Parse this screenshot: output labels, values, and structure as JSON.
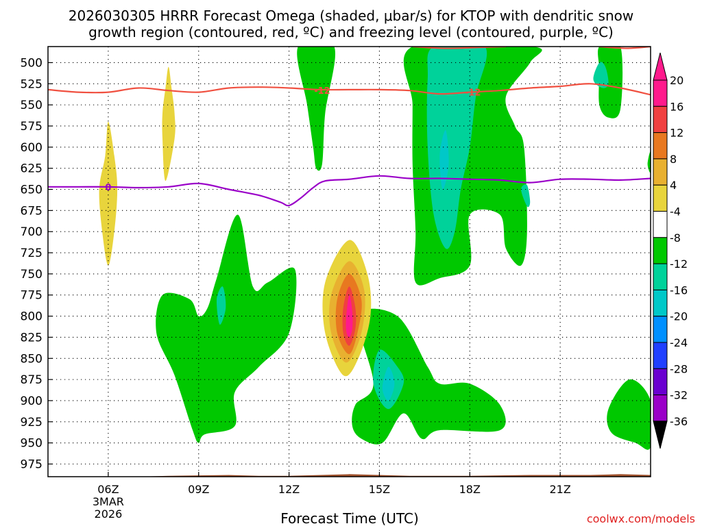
{
  "chart_data": {
    "type": "heatmap",
    "title_line1": "2026030305 HRRR Forecast Omega (shaded, μbar/s) for KTOP with dendritic snow",
    "title_line2": "growth region (contoured, red, ºC) and freezing level (contoured, purple, ºC)",
    "xlabel": "Forecast Time (UTC)",
    "credit": "coolwx.com/models",
    "x_range_hours": [
      4,
      24
    ],
    "y_range_mb": [
      481,
      990
    ],
    "x_ticks": [
      {
        "hour": 6,
        "label": "06Z",
        "sub1": "3MAR",
        "sub2": "2026"
      },
      {
        "hour": 9,
        "label": "09Z"
      },
      {
        "hour": 12,
        "label": "12Z"
      },
      {
        "hour": 15,
        "label": "15Z"
      },
      {
        "hour": 18,
        "label": "18Z"
      },
      {
        "hour": 21,
        "label": "21Z"
      }
    ],
    "y_ticks": [
      500,
      525,
      550,
      575,
      600,
      625,
      650,
      675,
      700,
      725,
      750,
      775,
      800,
      825,
      850,
      875,
      900,
      925,
      950,
      975
    ],
    "colorbar": {
      "colors": [
        "#a0a0a0",
        "#9a00c8",
        "#6a00d0",
        "#2040ff",
        "#0090ff",
        "#00c8c8",
        "#00d29a",
        "#00c800",
        "#ffffff",
        "#e8d43c",
        "#e8b030",
        "#e87820",
        "#f04040",
        "#ff1a8c"
      ],
      "labels": [
        "-36",
        "-32",
        "-28",
        "-24",
        "-20",
        "-16",
        "-12",
        "-8",
        "-4",
        "4",
        "8",
        "12",
        "16",
        "20"
      ],
      "under_color": "#000000",
      "over_color": "#ff1a8c"
    },
    "shaded_regions": [
      {
        "level": "-8",
        "color": "#00c800",
        "points": [
          [
            13.5,
            481
          ],
          [
            13.2,
            560
          ],
          [
            13.1,
            620
          ],
          [
            12.9,
            625
          ],
          [
            12.8,
            600
          ],
          [
            12.6,
            550
          ],
          [
            12.3,
            481
          ]
        ]
      },
      {
        "level": "-8",
        "color": "#00c800",
        "points": [
          [
            16.1,
            481
          ],
          [
            16.1,
            550
          ],
          [
            16.1,
            620
          ],
          [
            16.2,
            700
          ],
          [
            16.2,
            760
          ],
          [
            17.0,
            755
          ],
          [
            18.0,
            740
          ],
          [
            18.0,
            680
          ],
          [
            19.0,
            680
          ],
          [
            19.2,
            720
          ],
          [
            19.7,
            740
          ],
          [
            19.9,
            700
          ],
          [
            19.8,
            600
          ],
          [
            19.5,
            575
          ],
          [
            19.2,
            540
          ],
          [
            20.0,
            500
          ],
          [
            20.1,
            481
          ]
        ]
      },
      {
        "level": "-8",
        "color": "#00c800",
        "points": [
          [
            22.3,
            481
          ],
          [
            22.3,
            510
          ],
          [
            22.3,
            550
          ],
          [
            22.6,
            565
          ],
          [
            23.0,
            555
          ],
          [
            23.0,
            481
          ]
        ]
      },
      {
        "level": "-8",
        "color": "#00c800",
        "points": [
          [
            24.0,
            605
          ],
          [
            23.9,
            620
          ],
          [
            24.0,
            630
          ]
        ]
      },
      {
        "level": "-8",
        "color": "#00c800",
        "points": [
          [
            9.0,
            950
          ],
          [
            9.2,
            940
          ],
          [
            10.2,
            930
          ],
          [
            10.2,
            890
          ],
          [
            11.0,
            860
          ],
          [
            12.0,
            820
          ],
          [
            12.2,
            745
          ],
          [
            11.3,
            760
          ],
          [
            10.8,
            765
          ],
          [
            10.3,
            680
          ],
          [
            9.6,
            755
          ],
          [
            9.3,
            790
          ],
          [
            9.0,
            800
          ],
          [
            8.7,
            780
          ],
          [
            7.8,
            775
          ],
          [
            7.6,
            820
          ],
          [
            8.2,
            870
          ],
          [
            8.8,
            935
          ]
        ]
      },
      {
        "level": "-8",
        "color": "#00c800",
        "points": [
          [
            14.1,
            930
          ],
          [
            14.4,
            945
          ],
          [
            15.1,
            950
          ],
          [
            15.8,
            915
          ],
          [
            16.4,
            945
          ],
          [
            17.0,
            935
          ],
          [
            19.0,
            935
          ],
          [
            19.0,
            905
          ],
          [
            18.0,
            880
          ],
          [
            17.0,
            880
          ],
          [
            16.6,
            860
          ],
          [
            15.6,
            800
          ],
          [
            14.3,
            800
          ],
          [
            14.8,
            880
          ],
          [
            14.2,
            905
          ]
        ]
      },
      {
        "level": "-8",
        "color": "#00c800",
        "points": [
          [
            22.7,
            938
          ],
          [
            23.5,
            950
          ],
          [
            24.0,
            955
          ],
          [
            24.0,
            900
          ],
          [
            23.3,
            875
          ],
          [
            22.6,
            910
          ]
        ]
      },
      {
        "level": "-12",
        "color": "#00d29a",
        "points": [
          [
            16.8,
            481
          ],
          [
            16.6,
            520
          ],
          [
            16.6,
            600
          ],
          [
            16.8,
            680
          ],
          [
            17.2,
            720
          ],
          [
            17.5,
            700
          ],
          [
            17.7,
            650
          ],
          [
            18.0,
            600
          ],
          [
            18.2,
            540
          ],
          [
            18.5,
            481
          ]
        ]
      },
      {
        "level": "-12",
        "color": "#00d29a",
        "points": [
          [
            22.1,
            520
          ],
          [
            22.4,
            530
          ],
          [
            22.6,
            525
          ],
          [
            22.5,
            505
          ],
          [
            22.3,
            500
          ]
        ]
      },
      {
        "level": "-12",
        "color": "#00d29a",
        "points": [
          [
            19.7,
            650
          ],
          [
            19.9,
            670
          ],
          [
            20.0,
            665
          ],
          [
            19.9,
            645
          ]
        ]
      },
      {
        "level": "-12",
        "color": "#00d29a",
        "points": [
          [
            9.6,
            780
          ],
          [
            9.7,
            810
          ],
          [
            9.9,
            790
          ],
          [
            9.8,
            765
          ]
        ]
      },
      {
        "level": "-12",
        "color": "#00d29a",
        "points": [
          [
            14.8,
            880
          ],
          [
            15.3,
            910
          ],
          [
            15.8,
            880
          ],
          [
            15.6,
            860
          ],
          [
            15.0,
            840
          ]
        ]
      },
      {
        "level": "-16",
        "color": "#00c8c8",
        "points": [
          [
            17.0,
            610
          ],
          [
            17.1,
            650
          ],
          [
            17.3,
            620
          ],
          [
            17.2,
            580
          ]
        ]
      },
      {
        "level": "-16",
        "color": "#00c8c8",
        "points": [
          [
            15.1,
            885
          ],
          [
            15.3,
            900
          ],
          [
            15.5,
            880
          ],
          [
            15.3,
            860
          ]
        ]
      },
      {
        "level": "4",
        "color": "#e8d43c",
        "points": [
          [
            6.0,
            740
          ],
          [
            5.8,
            700
          ],
          [
            5.7,
            650
          ],
          [
            5.9,
            610
          ],
          [
            6.0,
            570
          ],
          [
            6.2,
            610
          ],
          [
            6.3,
            650
          ],
          [
            6.2,
            700
          ]
        ]
      },
      {
        "level": "4",
        "color": "#e8d43c",
        "points": [
          [
            7.9,
            640
          ],
          [
            7.8,
            590
          ],
          [
            7.8,
            560
          ],
          [
            7.9,
            530
          ],
          [
            8.0,
            505
          ],
          [
            8.1,
            530
          ],
          [
            8.2,
            560
          ],
          [
            8.2,
            590
          ]
        ]
      },
      {
        "level": "4",
        "color": "#e8d43c",
        "points": [
          [
            14.0,
            710
          ],
          [
            13.2,
            760
          ],
          [
            13.2,
            820
          ],
          [
            13.8,
            870
          ],
          [
            14.3,
            850
          ],
          [
            14.7,
            800
          ],
          [
            14.6,
            750
          ]
        ]
      },
      {
        "level": "8",
        "color": "#e8b030",
        "points": [
          [
            14.0,
            735
          ],
          [
            13.4,
            775
          ],
          [
            13.4,
            820
          ],
          [
            13.9,
            855
          ],
          [
            14.4,
            820
          ],
          [
            14.5,
            770
          ]
        ]
      },
      {
        "level": "12",
        "color": "#e87820",
        "points": [
          [
            14.0,
            750
          ],
          [
            13.6,
            780
          ],
          [
            13.6,
            820
          ],
          [
            14.0,
            845
          ],
          [
            14.3,
            815
          ],
          [
            14.4,
            780
          ]
        ]
      },
      {
        "level": "16",
        "color": "#f04040",
        "points": [
          [
            14.0,
            765
          ],
          [
            13.8,
            790
          ],
          [
            13.8,
            820
          ],
          [
            14.0,
            835
          ],
          [
            14.2,
            815
          ],
          [
            14.2,
            790
          ]
        ]
      },
      {
        "level": "20",
        "color": "#ff1a8c",
        "points": [
          [
            14.0,
            775
          ],
          [
            13.9,
            800
          ],
          [
            13.9,
            818
          ],
          [
            14.0,
            825
          ],
          [
            14.1,
            815
          ],
          [
            14.1,
            795
          ]
        ]
      }
    ],
    "series": [
      {
        "name": "dendritic -12C",
        "color": "#f05040",
        "label": "-12",
        "label_positions": [
          [
            13.1,
            533
          ],
          [
            18.1,
            535
          ]
        ],
        "points": [
          [
            4,
            532
          ],
          [
            5,
            535
          ],
          [
            6,
            535
          ],
          [
            7,
            530
          ],
          [
            8,
            533
          ],
          [
            9,
            535
          ],
          [
            10,
            530
          ],
          [
            11,
            529
          ],
          [
            12,
            530
          ],
          [
            13,
            532
          ],
          [
            14,
            532
          ],
          [
            15,
            532
          ],
          [
            16,
            533
          ],
          [
            17,
            537
          ],
          [
            18,
            535
          ],
          [
            19,
            533
          ],
          [
            20,
            530
          ],
          [
            21,
            528
          ],
          [
            22,
            525
          ],
          [
            23,
            530
          ],
          [
            24,
            538
          ]
        ]
      },
      {
        "name": "dendritic -12C upper",
        "color": "#f05040",
        "label": "",
        "points": [
          [
            16.1,
            481
          ],
          [
            17.2,
            483
          ],
          [
            18.3,
            482
          ],
          [
            19.2,
            481
          ]
        ]
      },
      {
        "name": "dendritic -12C upper-right",
        "color": "#f05040",
        "label": "",
        "points": [
          [
            22.3,
            481
          ],
          [
            23.2,
            483
          ],
          [
            24.0,
            481
          ]
        ]
      },
      {
        "name": "freezing level 0C",
        "color": "#9a00c8",
        "label": "0",
        "label_positions": [
          [
            6.0,
            647
          ]
        ],
        "points": [
          [
            4,
            647
          ],
          [
            5,
            647
          ],
          [
            6,
            647
          ],
          [
            7,
            648
          ],
          [
            8,
            647
          ],
          [
            9,
            643
          ],
          [
            10,
            650
          ],
          [
            11,
            657
          ],
          [
            11.7,
            665
          ],
          [
            12.0,
            669
          ],
          [
            12.4,
            660
          ],
          [
            12.8,
            648
          ],
          [
            13.2,
            640
          ],
          [
            14,
            638
          ],
          [
            15,
            634
          ],
          [
            16,
            637
          ],
          [
            17,
            637
          ],
          [
            18,
            638
          ],
          [
            19,
            639
          ],
          [
            20,
            642
          ],
          [
            21,
            638
          ],
          [
            22,
            638
          ],
          [
            23,
            639
          ],
          [
            24,
            637
          ]
        ]
      }
    ],
    "terrain": {
      "color": "#a0522d",
      "points": [
        [
          4,
          990
        ],
        [
          5,
          990
        ],
        [
          7,
          990
        ],
        [
          8,
          989
        ],
        [
          10,
          988
        ],
        [
          11,
          989
        ],
        [
          12,
          989
        ],
        [
          14,
          987
        ],
        [
          16,
          989
        ],
        [
          18,
          989
        ],
        [
          20,
          988
        ],
        [
          22,
          988
        ],
        [
          23,
          987
        ],
        [
          24,
          988
        ]
      ]
    }
  }
}
